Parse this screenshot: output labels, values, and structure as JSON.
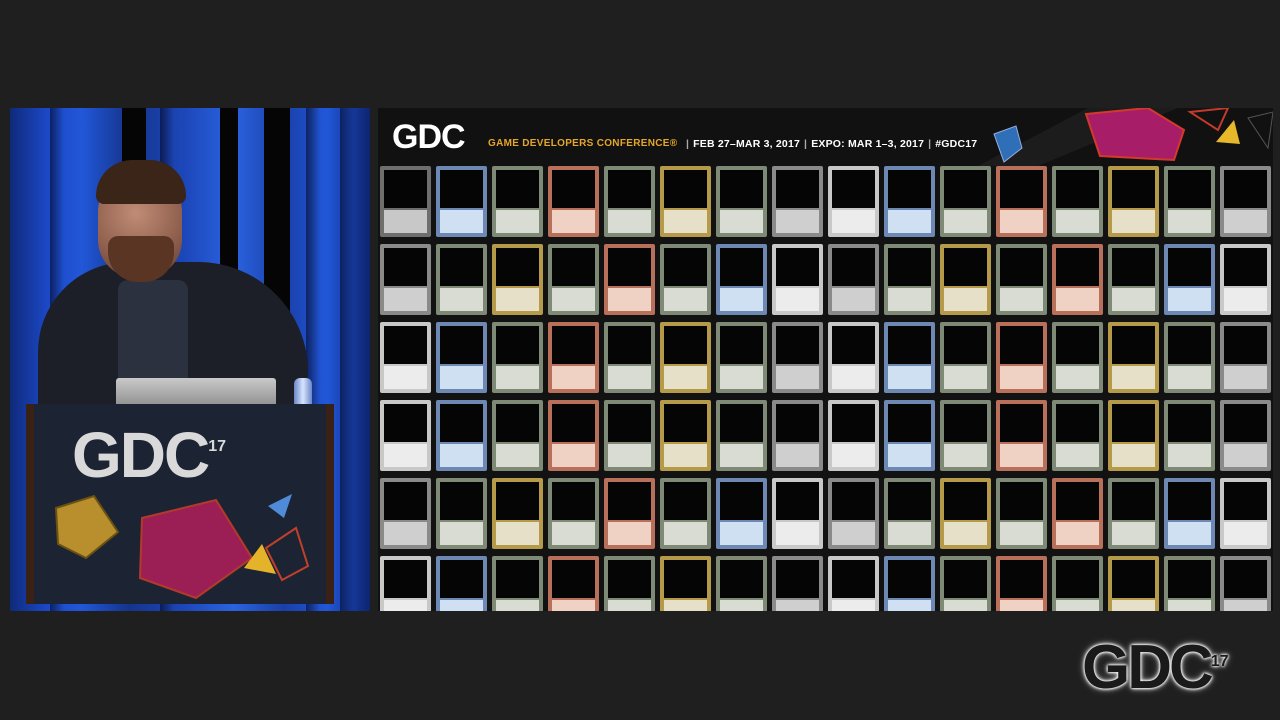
{
  "speaker": {
    "podium_logo": "GDC",
    "podium_logo_sup": "17"
  },
  "slide": {
    "logo": "GDC",
    "conference_name": "GAME DEVELOPERS CONFERENCE®",
    "dates": "FEB 27–MAR 3, 2017",
    "expo": "EXPO: MAR 1–3, 2017",
    "hashtag": "#GDC17",
    "separator": "|",
    "card_rows": [
      [
        "blk",
        "blu",
        "grn",
        "red",
        "grn",
        "gld",
        "grn",
        "gry",
        "wht",
        "blu",
        "grn",
        "red",
        "grn",
        "gld",
        "grn",
        "gry"
      ],
      [
        "gry",
        "grn",
        "gld",
        "grn",
        "red",
        "grn",
        "blu",
        "wht",
        "gry",
        "grn",
        "gld",
        "grn",
        "red",
        "grn",
        "blu",
        "wht"
      ],
      [
        "wht",
        "blu",
        "grn",
        "red",
        "grn",
        "gld",
        "grn",
        "gry",
        "wht",
        "blu",
        "grn",
        "red",
        "grn",
        "gld",
        "grn",
        "gry"
      ],
      [
        "wht",
        "blu",
        "grn",
        "red",
        "grn",
        "gld",
        "grn",
        "gry",
        "wht",
        "blu",
        "grn",
        "red",
        "grn",
        "gld",
        "grn",
        "gry"
      ],
      [
        "gry",
        "grn",
        "gld",
        "grn",
        "red",
        "grn",
        "blu",
        "wht",
        "gry",
        "grn",
        "gld",
        "grn",
        "red",
        "grn",
        "blu",
        "wht"
      ],
      [
        "wht",
        "blu",
        "grn",
        "red",
        "grn",
        "gld",
        "grn",
        "gry",
        "wht",
        "blu",
        "grn",
        "red",
        "grn",
        "gld",
        "grn",
        "gry"
      ]
    ],
    "card_colors": {
      "blk": {
        "frame": "#6e6e6e",
        "text": "#c8c8c8"
      },
      "blu": {
        "frame": "#6d89b3",
        "text": "#cfe0f2"
      },
      "grn": {
        "frame": "#7e8a76",
        "text": "#d8dcd2"
      },
      "red": {
        "frame": "#b8705a",
        "text": "#efd2c4"
      },
      "gld": {
        "frame": "#b59a4a",
        "text": "#e6e0c8"
      },
      "gry": {
        "frame": "#8a8a8a",
        "text": "#cfcfcf"
      },
      "wht": {
        "frame": "#c8c8c8",
        "text": "#ececec"
      }
    }
  },
  "watermark": {
    "logo": "GDC",
    "sup": "17"
  }
}
